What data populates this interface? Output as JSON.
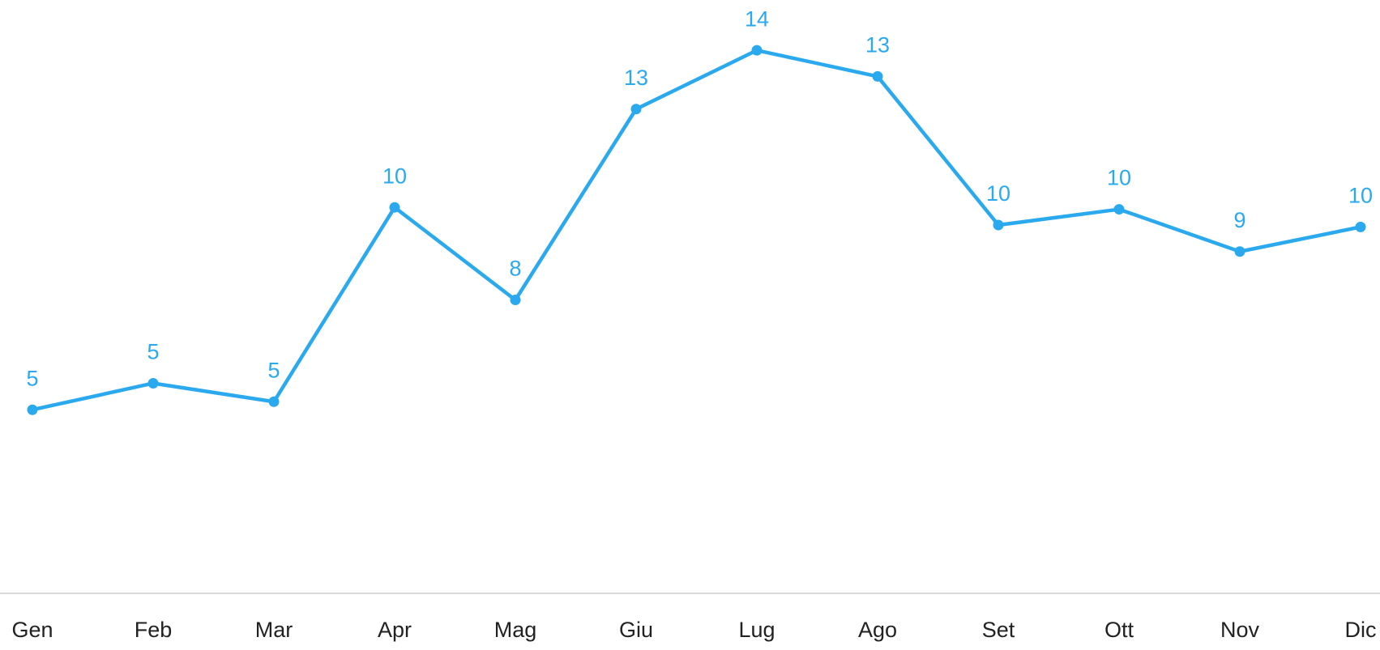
{
  "chart_data": {
    "type": "line",
    "categories": [
      "Gen",
      "Feb",
      "Mar",
      "Apr",
      "Mag",
      "Giu",
      "Lug",
      "Ago",
      "Set",
      "Ott",
      "Nov",
      "Dic"
    ],
    "series": [
      {
        "color": "#2aa9ee",
        "values": [
          4.78,
          5.47,
          4.99,
          10.05,
          7.64,
          12.61,
          14.14,
          13.46,
          9.59,
          10.0,
          8.9,
          9.54
        ],
        "value_labels": [
          "5",
          "5",
          "5",
          "10",
          "8",
          "13",
          "14",
          "13",
          "10",
          "10",
          "9",
          "10"
        ]
      }
    ],
    "ylim": [
      0,
      15.45
    ]
  }
}
